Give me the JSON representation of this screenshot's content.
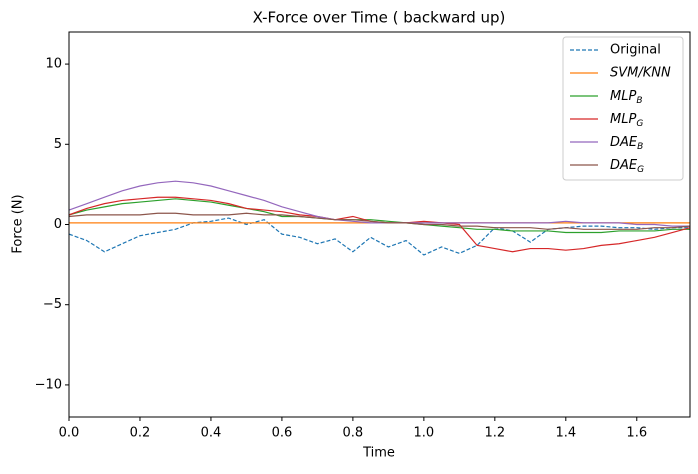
{
  "chart_data": {
    "type": "line",
    "title": "X-Force over Time ( backward up)",
    "x_label": "Time",
    "y_label": "Force (N)",
    "x": [
      0,
      0.05,
      0.1,
      0.15,
      0.2,
      0.25,
      0.3,
      0.35,
      0.4,
      0.45,
      0.5,
      0.55,
      0.6,
      0.65,
      0.7,
      0.75,
      0.8,
      0.85,
      0.9,
      0.95,
      1.0,
      1.05,
      1.1,
      1.15,
      1.2,
      1.25,
      1.3,
      1.35,
      1.4,
      1.45,
      1.5,
      1.55,
      1.6,
      1.65,
      1.7,
      1.75
    ],
    "series": [
      {
        "name": "Original",
        "color": "#1f77b4",
        "linestyle": "--",
        "values": [
          -0.6,
          -1.0,
          -1.7,
          -1.2,
          -0.7,
          -0.5,
          -0.3,
          0.1,
          0.2,
          0.4,
          0.0,
          0.3,
          -0.6,
          -0.8,
          -1.2,
          -0.9,
          -1.7,
          -0.8,
          -1.4,
          -1.0,
          -1.9,
          -1.4,
          -1.8,
          -1.3,
          -0.2,
          -0.4,
          -1.1,
          -0.3,
          -0.2,
          -0.1,
          -0.1,
          -0.2,
          -0.2,
          -0.3,
          -0.2,
          -0.2
        ]
      },
      {
        "name": "SVM/KNN",
        "color": "#ff7f0e",
        "values": [
          0.1,
          0.1,
          0.1,
          0.1,
          0.1,
          0.1,
          0.1,
          0.1,
          0.1,
          0.1,
          0.1,
          0.1,
          0.1,
          0.1,
          0.1,
          0.1,
          0.1,
          0.1,
          0.1,
          0.1,
          0.1,
          0.1,
          0.1,
          0.1,
          0.1,
          0.1,
          0.1,
          0.1,
          0.1,
          0.1,
          0.1,
          0.1,
          0.1,
          0.1,
          0.1,
          0.1
        ]
      },
      {
        "name": "MLPB",
        "color": "#2ca02c",
        "values": [
          0.6,
          0.9,
          1.1,
          1.3,
          1.4,
          1.5,
          1.6,
          1.5,
          1.4,
          1.2,
          1.0,
          0.8,
          0.5,
          0.5,
          0.4,
          0.3,
          0.3,
          0.3,
          0.2,
          0.1,
          0.0,
          -0.1,
          -0.2,
          -0.3,
          -0.3,
          -0.4,
          -0.4,
          -0.4,
          -0.5,
          -0.5,
          -0.5,
          -0.4,
          -0.4,
          -0.4,
          -0.3,
          -0.3
        ]
      },
      {
        "name": "MLPG",
        "color": "#d62728",
        "values": [
          0.6,
          1.0,
          1.3,
          1.5,
          1.6,
          1.7,
          1.7,
          1.6,
          1.5,
          1.3,
          1.0,
          0.9,
          0.8,
          0.6,
          0.5,
          0.3,
          0.5,
          0.2,
          0.1,
          0.1,
          0.2,
          0.1,
          0.0,
          -1.3,
          -1.5,
          -1.7,
          -1.5,
          -1.5,
          -1.6,
          -1.5,
          -1.3,
          -1.2,
          -1.0,
          -0.8,
          -0.5,
          -0.2
        ]
      },
      {
        "name": "DAEB",
        "color": "#9467bd",
        "values": [
          0.9,
          1.3,
          1.7,
          2.1,
          2.4,
          2.6,
          2.7,
          2.6,
          2.4,
          2.1,
          1.8,
          1.5,
          1.1,
          0.8,
          0.5,
          0.3,
          0.2,
          0.1,
          0.1,
          0.1,
          0.1,
          0.1,
          0.1,
          0.1,
          0.1,
          0.1,
          0.1,
          0.1,
          0.2,
          0.1,
          0.1,
          0.1,
          0.0,
          0.0,
          -0.1,
          -0.1
        ]
      },
      {
        "name": "DAEG",
        "color": "#8c564b",
        "values": [
          0.5,
          0.6,
          0.6,
          0.6,
          0.6,
          0.7,
          0.7,
          0.6,
          0.6,
          0.6,
          0.7,
          0.6,
          0.6,
          0.5,
          0.4,
          0.3,
          0.3,
          0.2,
          0.1,
          0.1,
          0.0,
          0.0,
          -0.1,
          -0.1,
          -0.2,
          -0.2,
          -0.2,
          -0.3,
          -0.2,
          -0.3,
          -0.3,
          -0.3,
          -0.3,
          -0.2,
          -0.2,
          -0.1
        ]
      }
    ],
    "xlim": [
      0,
      1.75
    ],
    "ylim": [
      -12,
      12
    ],
    "xticks": [
      {
        "value": 0,
        "label": "0.0"
      },
      0.2,
      0.4,
      0.6,
      0.8,
      {
        "value": 1,
        "label": "1.0"
      },
      1.2,
      1.4,
      1.6
    ],
    "yticks": [
      {
        "value": -10,
        "label": "−10"
      },
      {
        "value": -5,
        "label": "−5"
      },
      0,
      5,
      10
    ],
    "legend": "upper right"
  }
}
